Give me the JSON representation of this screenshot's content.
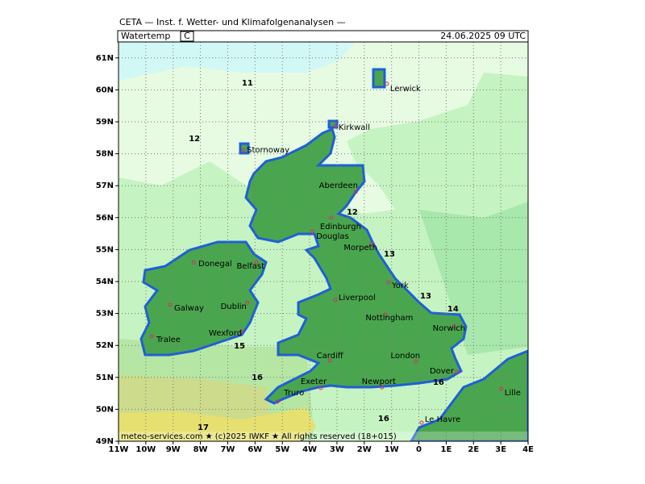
{
  "header": {
    "title": "CETA — Inst. f. Wetter- und Klimafolgenanalysen —",
    "field": "Watertemp",
    "unit": "C",
    "valid": "24.06.2025 09 UTC"
  },
  "footer": "meteo-services.com ★ (c)2025 IWKF ★ All rights reserved (18+015)",
  "map": {
    "lonlim": [
      -11,
      4
    ],
    "latlim": [
      49,
      61.5
    ],
    "grid": true,
    "lonticks": [
      {
        "value": -11,
        "label": "11W"
      },
      {
        "value": -10,
        "label": "10W"
      },
      {
        "value": -9,
        "label": "9W"
      },
      {
        "value": -8,
        "label": "8W"
      },
      {
        "value": -7,
        "label": "7W"
      },
      {
        "value": -6,
        "label": "6W"
      },
      {
        "value": -5,
        "label": "5W"
      },
      {
        "value": -4,
        "label": "4W"
      },
      {
        "value": -3,
        "label": "3W"
      },
      {
        "value": -2,
        "label": "2W"
      },
      {
        "value": -1,
        "label": "1W"
      },
      {
        "value": 0,
        "label": "0"
      },
      {
        "value": 1,
        "label": "1E"
      },
      {
        "value": 2,
        "label": "2E"
      },
      {
        "value": 3,
        "label": "3E"
      },
      {
        "value": 4,
        "label": "4E"
      }
    ],
    "latticks": [
      {
        "value": 49,
        "label": "49N"
      },
      {
        "value": 50,
        "label": "50N"
      },
      {
        "value": 51,
        "label": "51N"
      },
      {
        "value": 52,
        "label": "52N"
      },
      {
        "value": 53,
        "label": "53N"
      },
      {
        "value": 54,
        "label": "54N"
      },
      {
        "value": 55,
        "label": "55N"
      },
      {
        "value": 56,
        "label": "56N"
      },
      {
        "value": 57,
        "label": "57N"
      },
      {
        "value": 58,
        "label": "58N"
      },
      {
        "value": 59,
        "label": "59N"
      },
      {
        "value": 60,
        "label": "60N"
      },
      {
        "value": 61,
        "label": "61N"
      }
    ],
    "cities": [
      {
        "name": "Lerwick",
        "lon": -1.17,
        "lat": 60.19
      },
      {
        "name": "Kirkwall",
        "lon": -3.06,
        "lat": 58.87
      },
      {
        "name": "Stornoway",
        "lon": -6.42,
        "lat": 58.12
      },
      {
        "name": "Aberdeen",
        "lon": -2.32,
        "lat": 56.8
      },
      {
        "name": "Edinburgh",
        "lon": -3.21,
        "lat": 56.0
      },
      {
        "name": "Douglas",
        "lon": -3.91,
        "lat": 55.57
      },
      {
        "name": "Morpeth",
        "lon": -1.73,
        "lat": 55.19
      },
      {
        "name": "Donegal",
        "lon": -8.25,
        "lat": 54.6
      },
      {
        "name": "Belfast",
        "lon": -5.95,
        "lat": 54.6
      },
      {
        "name": "York",
        "lon": -1.11,
        "lat": 53.97
      },
      {
        "name": "Galway",
        "lon": -9.11,
        "lat": 53.27
      },
      {
        "name": "Dublin",
        "lon": -6.28,
        "lat": 53.34
      },
      {
        "name": "Liverpool",
        "lon": -3.06,
        "lat": 53.42
      },
      {
        "name": "Nottingham",
        "lon": -1.23,
        "lat": 52.96
      },
      {
        "name": "Norwich",
        "lon": 1.28,
        "lat": 52.59
      },
      {
        "name": "Wexford",
        "lon": -6.51,
        "lat": 52.43
      },
      {
        "name": "Tralee",
        "lon": -9.79,
        "lat": 52.28
      },
      {
        "name": "Cardiff",
        "lon": -3.26,
        "lat": 51.53
      },
      {
        "name": "London",
        "lon": -0.11,
        "lat": 51.5
      },
      {
        "name": "Dover",
        "lon": 1.4,
        "lat": 51.17
      },
      {
        "name": "Exeter",
        "lon": -3.59,
        "lat": 50.67
      },
      {
        "name": "Newport",
        "lon": -1.35,
        "lat": 50.69
      },
      {
        "name": "Truro",
        "lon": -5.18,
        "lat": 50.24
      },
      {
        "name": "Lille",
        "lon": 3.02,
        "lat": 50.64
      },
      {
        "name": "Le Havre",
        "lon": 0.1,
        "lat": 49.58
      }
    ],
    "isotherm_labels": [
      {
        "value": 11,
        "lon": -6.28,
        "lat": 60.21
      },
      {
        "value": 12,
        "lon": -8.22,
        "lat": 58.47
      },
      {
        "value": 12,
        "lon": -2.44,
        "lat": 56.17
      },
      {
        "value": 13,
        "lon": -1.08,
        "lat": 54.86
      },
      {
        "value": 13,
        "lon": 0.25,
        "lat": 53.55
      },
      {
        "value": 14,
        "lon": 1.25,
        "lat": 53.14
      },
      {
        "value": 15,
        "lon": -6.57,
        "lat": 51.98
      },
      {
        "value": 16,
        "lon": -5.92,
        "lat": 50.99
      },
      {
        "value": 16,
        "lon": 0.72,
        "lat": 50.84
      },
      {
        "value": 16,
        "lon": -1.29,
        "lat": 49.71
      },
      {
        "value": 17,
        "lon": -7.9,
        "lat": 49.43
      }
    ]
  }
}
